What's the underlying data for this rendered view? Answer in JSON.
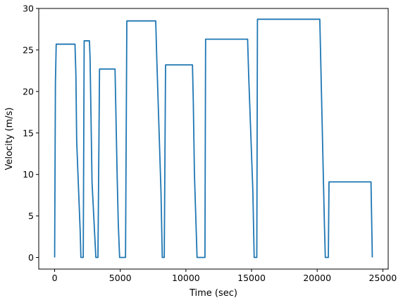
{
  "chart_data": {
    "type": "line",
    "title": "",
    "xlabel": "Time (sec)",
    "ylabel": "Velocity (m/s)",
    "xlim": [
      -1210,
      25410
    ],
    "ylim": [
      -1.4,
      30
    ],
    "xticks": [
      0,
      5000,
      10000,
      15000,
      20000,
      25000
    ],
    "yticks": [
      0,
      5,
      10,
      15,
      20,
      25,
      30
    ],
    "grid": false,
    "legend": "none",
    "colors": {
      "line": "#1f77b4",
      "axes": "#000000",
      "background": "#ffffff"
    },
    "series": [
      {
        "x": [
          0,
          60,
          120,
          200,
          1550,
          1620,
          1680,
          1950,
          2000,
          2100,
          2180,
          2250,
          2300,
          2650,
          2700,
          2850,
          3140,
          3200,
          3300,
          3420,
          3500,
          3550,
          4600,
          4660,
          4760,
          4850,
          4950,
          5000,
          5100,
          5200,
          5400,
          5500,
          5600,
          7700,
          7780,
          8100,
          8200,
          8300,
          8350,
          8450,
          8500,
          10500,
          10560,
          10650,
          10850,
          10950,
          11000,
          11200,
          11450,
          11500,
          11550,
          14700,
          14780,
          15100,
          15200,
          15300,
          15400,
          15450,
          20100,
          20200,
          20550,
          20620,
          20850,
          20900,
          24100,
          24200
        ],
        "y": [
          0,
          21,
          25.7,
          25.7,
          25.7,
          22,
          14,
          3,
          0,
          0,
          0,
          26.1,
          26.1,
          26.1,
          24,
          9,
          0,
          0,
          0,
          22.7,
          22.7,
          22.7,
          22.7,
          18,
          10,
          4,
          0,
          0,
          0,
          0,
          0,
          28.5,
          28.5,
          28.5,
          24,
          8,
          0,
          0,
          0,
          23.2,
          23.2,
          23.2,
          19,
          10,
          0,
          0,
          0,
          0,
          0,
          26.3,
          26.3,
          26.3,
          22,
          8,
          0,
          0,
          0,
          28.7,
          28.7,
          28.7,
          4,
          0,
          0,
          9.1,
          9.1,
          0
        ]
      }
    ]
  }
}
